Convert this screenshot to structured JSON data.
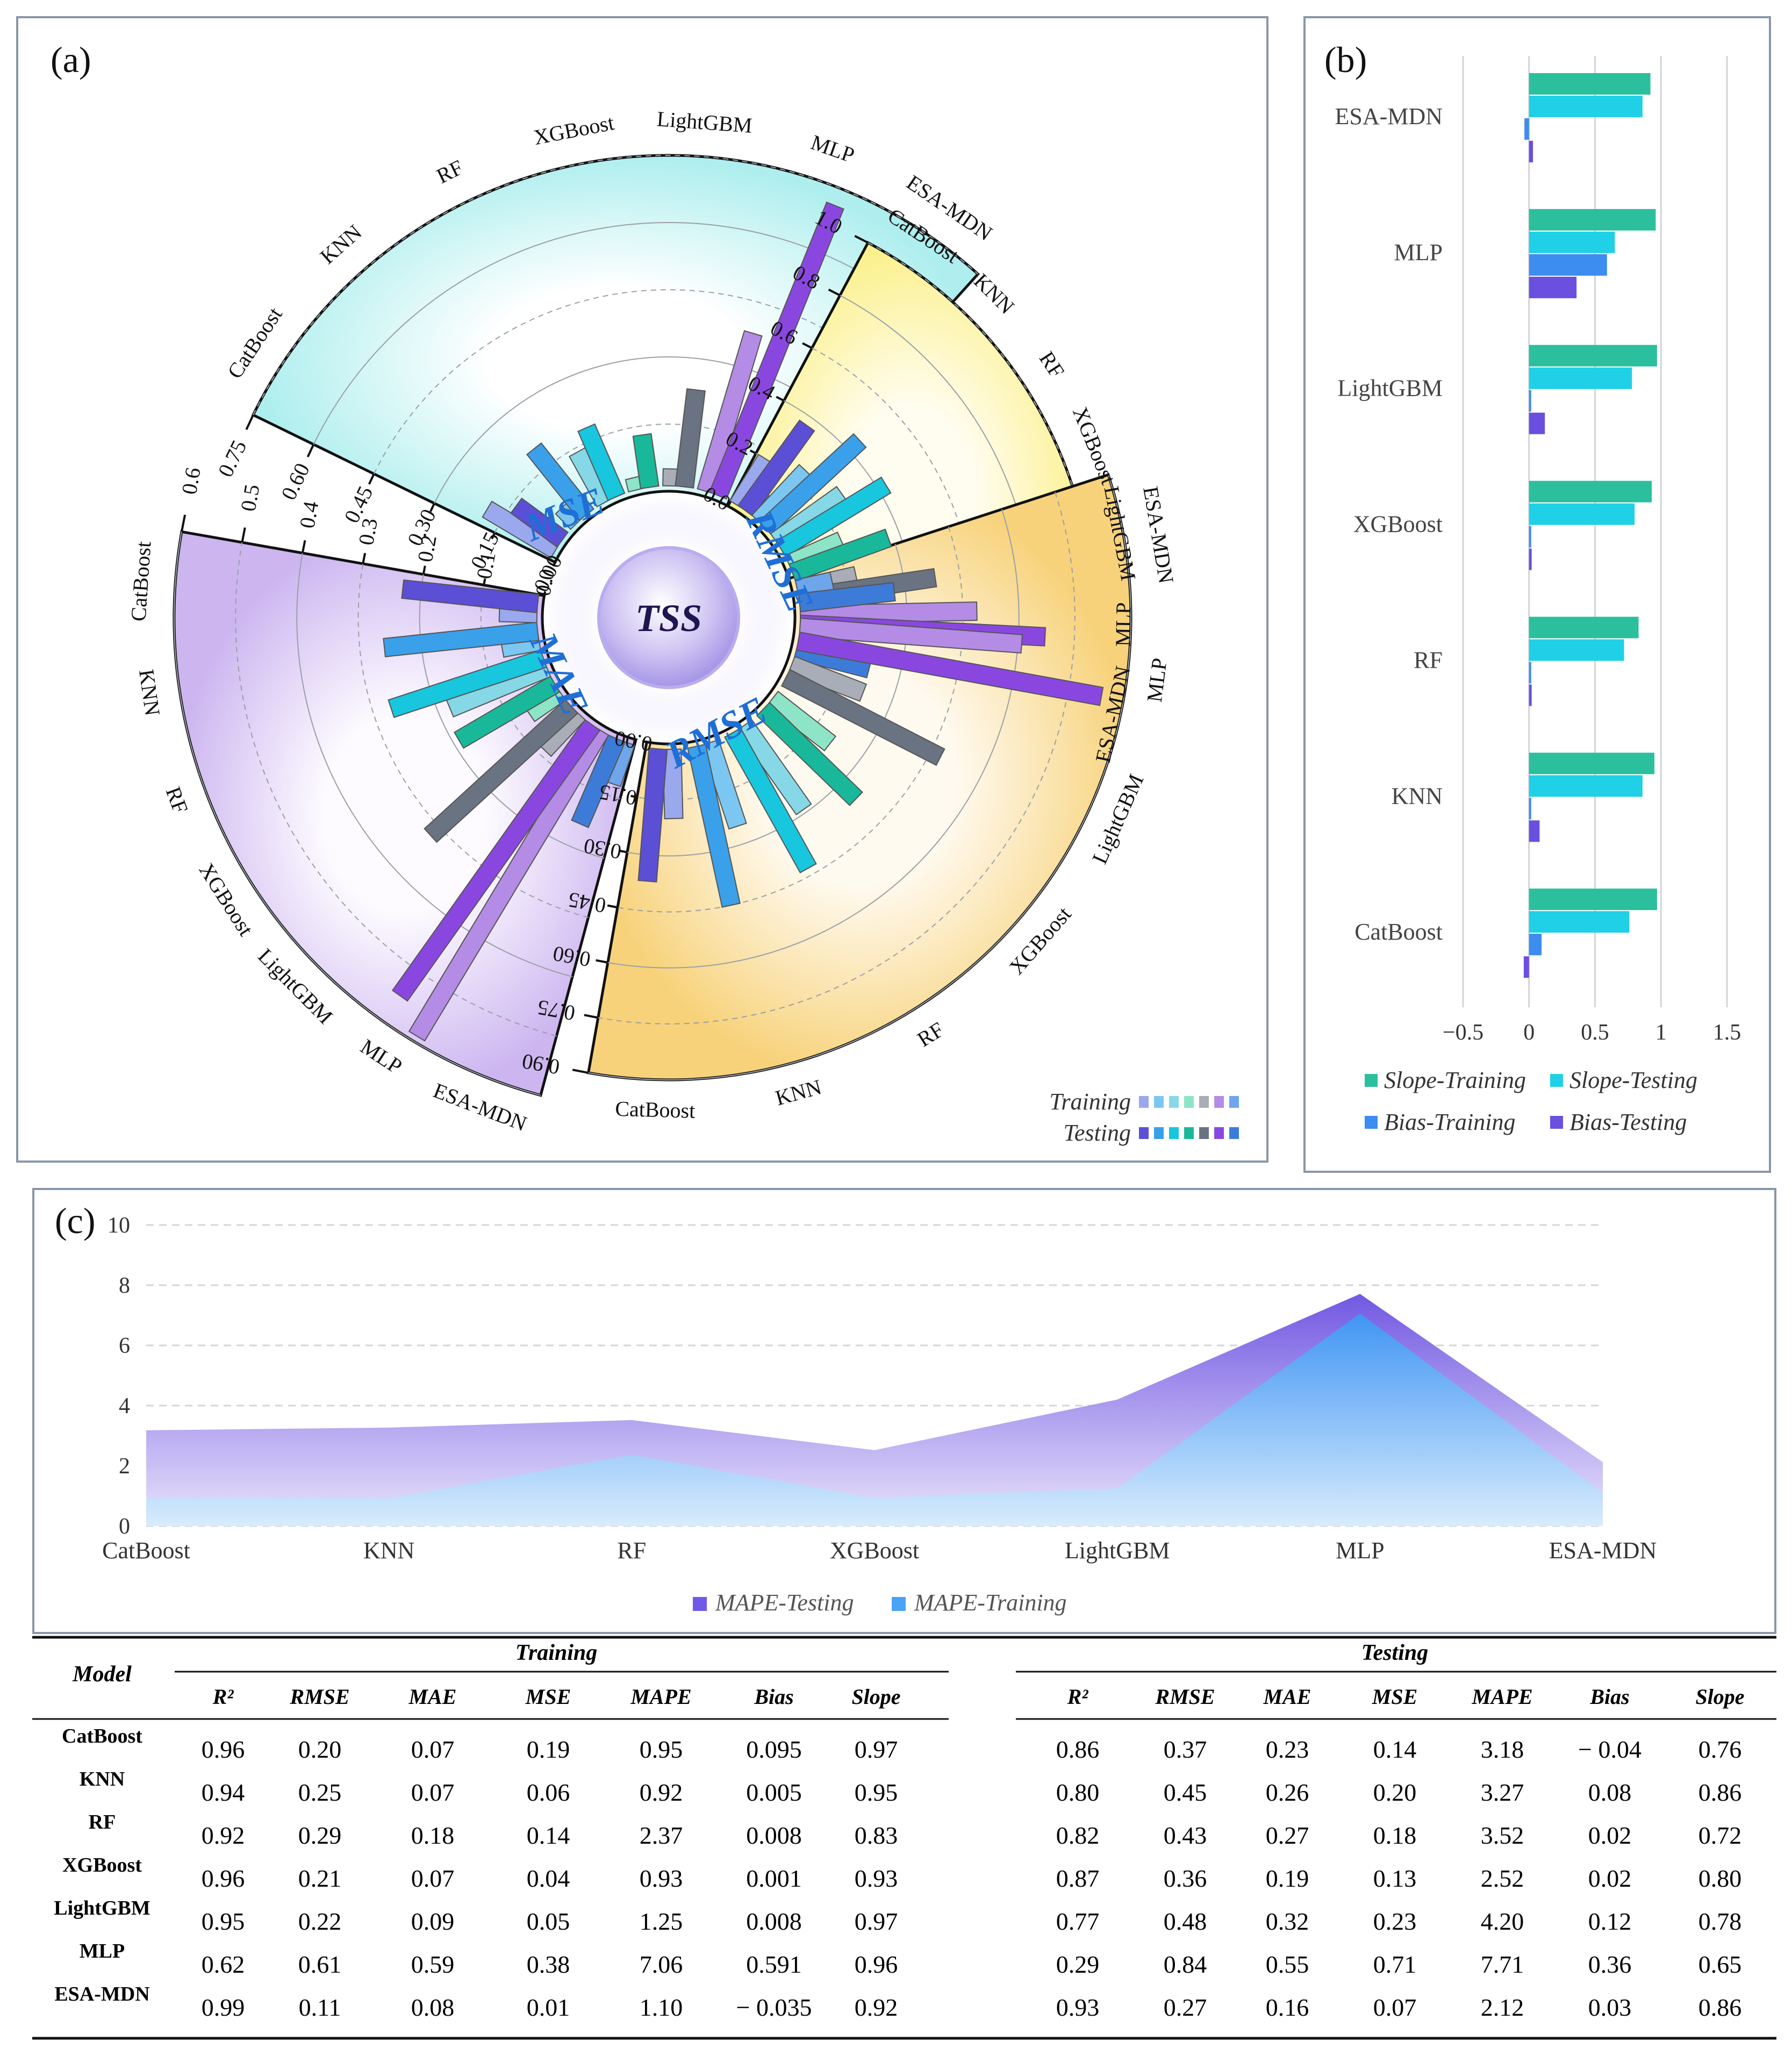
{
  "panels": {
    "a": "(a)",
    "b": "(b)",
    "c": "(c)"
  },
  "models": [
    "CatBoost",
    "KNN",
    "RF",
    "XGBoost",
    "LightGBM",
    "MLP",
    "ESA-MDN"
  ],
  "center_label": "TSS",
  "radial_sectors": {
    "mse": {
      "label": "MSE",
      "ticks": [
        "0.00",
        "0.15",
        "0.30",
        "0.45",
        "0.60",
        "0.75"
      ]
    },
    "rmse_upper": {
      "label": "RMSE",
      "ticks": [
        "0.0",
        "0.2",
        "0.4",
        "0.6",
        "0.8",
        "1.0"
      ]
    },
    "rmse_lower": {
      "label": "RMSE",
      "ticks": [
        "0.00",
        "0.15",
        "0.30",
        "0.45",
        "0.60",
        "0.75",
        "0.90"
      ]
    },
    "mae": {
      "label": "MAE",
      "ticks": [
        "0.0",
        "0.1",
        "0.2",
        "0.3",
        "0.4",
        "0.5",
        "0.6"
      ]
    }
  },
  "legend_a": {
    "training": "Training",
    "testing": "Testing"
  },
  "legend_b": [
    "Slope-Training",
    "Slope-Testing",
    "Bias-Training",
    "Bias-Testing"
  ],
  "legend_c": [
    "MAPE-Testing",
    "MAPE-Training"
  ],
  "b_axis_ticks": [
    "−0.5",
    "0",
    "0.5",
    "1",
    "1.5"
  ],
  "c_axis_ticks": [
    "0",
    "2",
    "4",
    "6",
    "8",
    "10"
  ],
  "palette": {
    "training": [
      "#9aa8ee",
      "#7cc7f2",
      "#86d8e6",
      "#8ee4c6",
      "#a9adb7",
      "#b48ce6",
      "#6fa5ea"
    ],
    "testing": [
      "#5b4fd6",
      "#3aa0ea",
      "#18c6de",
      "#1ab89a",
      "#6a7381",
      "#8a47e0",
      "#3c7cd8"
    ],
    "slope_training": "#2bbf9d",
    "slope_testing": "#1fd0e6",
    "bias_training": "#3d8cf0",
    "bias_testing": "#6a4fe0",
    "mape_testing": "#6f59e8",
    "mape_training": "#4aa3f5"
  },
  "chart_data": [
    {
      "type": "bar",
      "id": "a",
      "title": "(a)",
      "subject": "TSS",
      "layout": "radial",
      "categories": [
        "CatBoost",
        "KNN",
        "RF",
        "XGBoost",
        "LightGBM",
        "MLP",
        "ESA-MDN"
      ],
      "series": [
        {
          "name": "MSE-Training",
          "values": [
            0.19,
            0.06,
            0.14,
            0.04,
            0.05,
            0.38,
            0.01
          ]
        },
        {
          "name": "MSE-Testing",
          "values": [
            0.14,
            0.2,
            0.18,
            0.13,
            0.23,
            0.71,
            0.07
          ]
        },
        {
          "name": "RMSE-Training",
          "values": [
            0.2,
            0.25,
            0.29,
            0.21,
            0.22,
            0.61,
            0.11
          ]
        },
        {
          "name": "RMSE-Testing",
          "values": [
            0.37,
            0.45,
            0.43,
            0.36,
            0.48,
            0.84,
            0.27
          ]
        },
        {
          "name": "MAE-Training",
          "values": [
            0.07,
            0.07,
            0.18,
            0.07,
            0.09,
            0.59,
            0.08
          ]
        },
        {
          "name": "MAE-Testing",
          "values": [
            0.23,
            0.26,
            0.27,
            0.19,
            0.32,
            0.55,
            0.16
          ]
        }
      ],
      "axes": {
        "MSE": [
          0,
          0.75
        ],
        "RMSE_upper": [
          0,
          1.0
        ],
        "RMSE_lower": [
          0,
          0.9
        ],
        "MAE": [
          0,
          0.6
        ]
      },
      "legend": "bottom-right"
    },
    {
      "type": "bar",
      "id": "b",
      "title": "(b)",
      "orientation": "horizontal",
      "categories": [
        "ESA-MDN",
        "MLP",
        "LightGBM",
        "XGBoost",
        "RF",
        "KNN",
        "CatBoost"
      ],
      "series": [
        {
          "name": "Slope-Training",
          "values": [
            0.92,
            0.96,
            0.97,
            0.93,
            0.83,
            0.95,
            0.97
          ]
        },
        {
          "name": "Slope-Testing",
          "values": [
            0.86,
            0.65,
            0.78,
            0.8,
            0.72,
            0.86,
            0.76
          ]
        },
        {
          "name": "Bias-Training",
          "values": [
            -0.035,
            0.591,
            0.008,
            0.001,
            0.008,
            0.005,
            0.095
          ]
        },
        {
          "name": "Bias-Testing",
          "values": [
            0.03,
            0.36,
            0.12,
            0.02,
            0.02,
            0.08,
            -0.04
          ]
        }
      ],
      "xlim": [
        -0.5,
        1.5
      ],
      "grid": true,
      "legend": "bottom"
    },
    {
      "type": "area",
      "id": "c",
      "title": "(c)",
      "categories": [
        "CatBoost",
        "KNN",
        "RF",
        "XGBoost",
        "LightGBM",
        "MLP",
        "ESA-MDN"
      ],
      "series": [
        {
          "name": "MAPE-Testing",
          "values": [
            3.18,
            3.27,
            3.52,
            2.52,
            4.2,
            7.71,
            2.12
          ]
        },
        {
          "name": "MAPE-Training",
          "values": [
            0.95,
            0.92,
            2.37,
            0.93,
            1.25,
            7.06,
            1.1
          ]
        }
      ],
      "ylim": [
        0,
        10
      ],
      "grid": true,
      "legend": "bottom"
    },
    {
      "type": "table",
      "id": "metrics",
      "header": {
        "model": "Model",
        "training": "Training",
        "testing": "Testing",
        "metrics": [
          "R²",
          "RMSE",
          "MAE",
          "MSE",
          "MAPE",
          "Bias",
          "Slope"
        ]
      },
      "rows": [
        {
          "model": "CatBoost",
          "training": [
            "0.96",
            "0.20",
            "0.07",
            "0.19",
            "0.95",
            "0.095",
            "0.97"
          ],
          "testing": [
            "0.86",
            "0.37",
            "0.23",
            "0.14",
            "3.18",
            "− 0.04",
            "0.76"
          ]
        },
        {
          "model": "KNN",
          "training": [
            "0.94",
            "0.25",
            "0.07",
            "0.06",
            "0.92",
            "0.005",
            "0.95"
          ],
          "testing": [
            "0.80",
            "0.45",
            "0.26",
            "0.20",
            "3.27",
            "0.08",
            "0.86"
          ]
        },
        {
          "model": "RF",
          "training": [
            "0.92",
            "0.29",
            "0.18",
            "0.14",
            "2.37",
            "0.008",
            "0.83"
          ],
          "testing": [
            "0.82",
            "0.43",
            "0.27",
            "0.18",
            "3.52",
            "0.02",
            "0.72"
          ]
        },
        {
          "model": "XGBoost",
          "training": [
            "0.96",
            "0.21",
            "0.07",
            "0.04",
            "0.93",
            "0.001",
            "0.93"
          ],
          "testing": [
            "0.87",
            "0.36",
            "0.19",
            "0.13",
            "2.52",
            "0.02",
            "0.80"
          ]
        },
        {
          "model": "LightGBM",
          "training": [
            "0.95",
            "0.22",
            "0.09",
            "0.05",
            "1.25",
            "0.008",
            "0.97"
          ],
          "testing": [
            "0.77",
            "0.48",
            "0.32",
            "0.23",
            "4.20",
            "0.12",
            "0.78"
          ]
        },
        {
          "model": "MLP",
          "training": [
            "0.62",
            "0.61",
            "0.59",
            "0.38",
            "7.06",
            "0.591",
            "0.96"
          ],
          "testing": [
            "0.29",
            "0.84",
            "0.55",
            "0.71",
            "7.71",
            "0.36",
            "0.65"
          ]
        },
        {
          "model": "ESA-MDN",
          "training": [
            "0.99",
            "0.11",
            "0.08",
            "0.01",
            "1.10",
            "− 0.035",
            "0.92"
          ],
          "testing": [
            "0.93",
            "0.27",
            "0.16",
            "0.07",
            "2.12",
            "0.03",
            "0.86"
          ]
        }
      ]
    }
  ]
}
